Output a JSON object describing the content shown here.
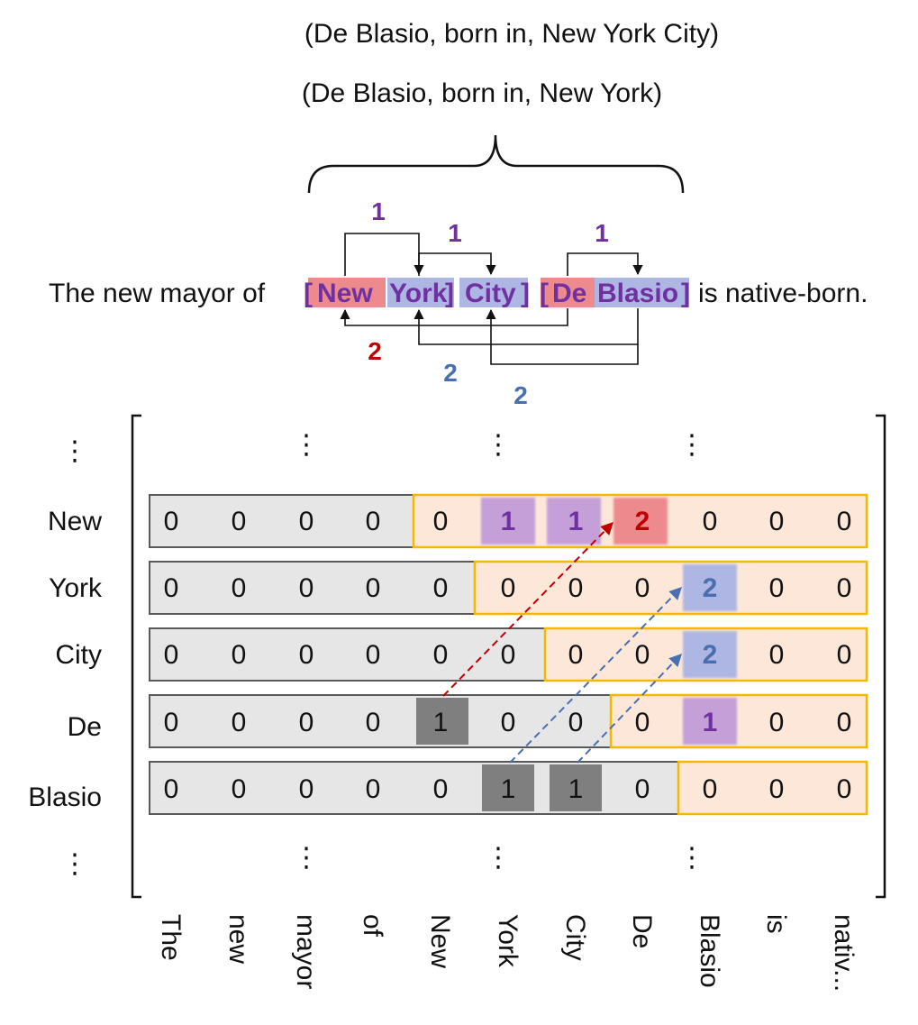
{
  "triples": [
    "(De Blasio, born in, New York City)",
    "(De Blasio, born in, New York)"
  ],
  "sentence": {
    "prefix": "The new mayor of",
    "open1": "[",
    "tok_new": "New",
    "tok_york": "York",
    "close1": "]",
    "tok_city": "City",
    "close2": "]",
    "open2": "[",
    "tok_de": "De",
    "tok_blasio": "Blasio",
    "close3": "]",
    "suffix": "is native-born."
  },
  "link_labels": {
    "new_york": "1",
    "york_city": "1",
    "de_blasio": "1",
    "de_new": "2",
    "blasio_york": "2",
    "blasio_city": "2"
  },
  "row_labels": [
    "New",
    "York",
    "City",
    "De",
    "Blasio"
  ],
  "column_labels": [
    "The",
    "new",
    "mayor",
    "of",
    "New",
    "York",
    "City",
    "De",
    "Blasio",
    "is",
    "nativ..."
  ],
  "ellipsis": "⋮",
  "matrix": [
    [
      "0",
      "0",
      "0",
      "0",
      "0",
      "1",
      "1",
      "2",
      "0",
      "0",
      "0"
    ],
    [
      "0",
      "0",
      "0",
      "0",
      "0",
      "0",
      "0",
      "0",
      "2",
      "0",
      "0"
    ],
    [
      "0",
      "0",
      "0",
      "0",
      "0",
      "0",
      "0",
      "0",
      "2",
      "0",
      "0"
    ],
    [
      "0",
      "0",
      "0",
      "0",
      "1",
      "0",
      "0",
      "0",
      "1",
      "0",
      "0"
    ],
    [
      "0",
      "0",
      "0",
      "0",
      "0",
      "1",
      "1",
      "0",
      "0",
      "0",
      "0"
    ]
  ],
  "colors": {
    "purple": "#7030a0",
    "red": "#c00000",
    "blue": "#4a6fb0",
    "red_fill": "#ec8a8e",
    "blue_fill": "#aeb6e4",
    "purple_fill": "#c49fd8",
    "gray_row": "#e6e6e6",
    "orange_border": "#f5b800",
    "orange_fill": "#fde7d9",
    "dark_cell": "#7f7f7f"
  }
}
